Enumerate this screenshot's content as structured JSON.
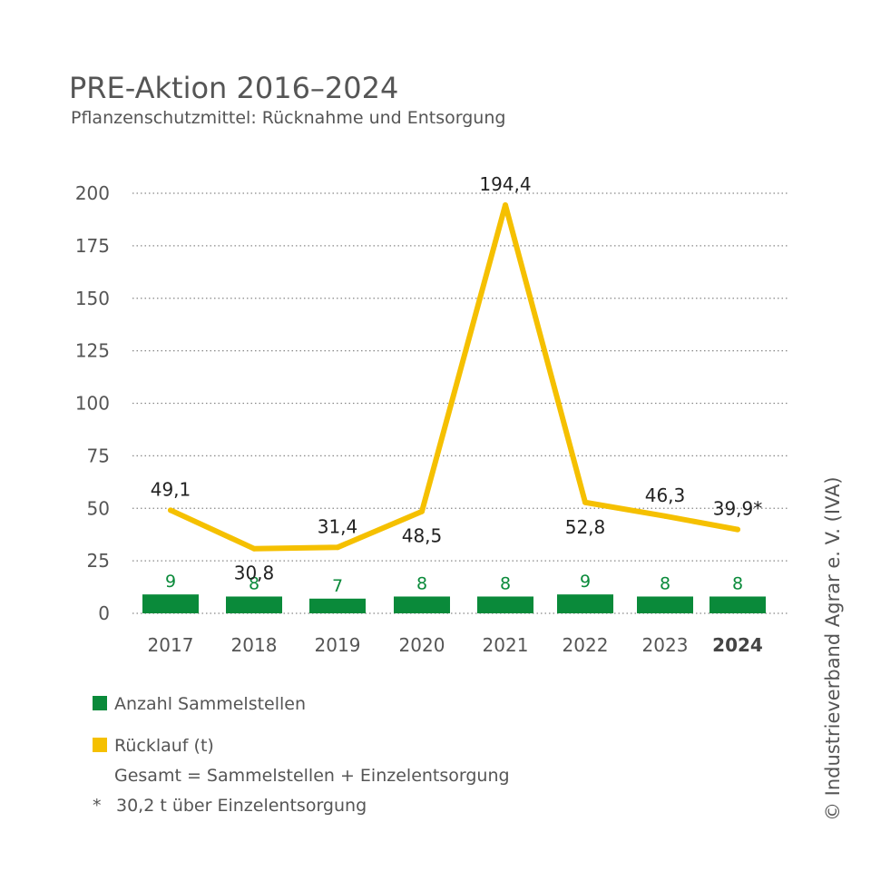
{
  "header": {
    "title": "PRE-Aktion 2016–2024",
    "subtitle": "Pflanzenschutzmittel: Rücknahme und Entsorgung"
  },
  "chart_data": {
    "type": "bar+line",
    "ylim": [
      0,
      200
    ],
    "yticks": [
      0,
      25,
      50,
      75,
      100,
      125,
      150,
      175,
      200
    ],
    "categories": [
      "2017",
      "2018",
      "2019",
      "2020",
      "2021",
      "2022",
      "2023",
      "2024"
    ],
    "highlight_category": "2024",
    "grid": true,
    "series": [
      {
        "name": "Anzahl Sammelstellen",
        "kind": "bar",
        "values": [
          9,
          8,
          7,
          8,
          8,
          9,
          8,
          8
        ],
        "labels": [
          "9",
          "8",
          "7",
          "8",
          "8",
          "9",
          "8",
          "8"
        ],
        "color": "#0a8a3a"
      },
      {
        "name": "Rücklauf (t)",
        "kind": "line",
        "values": [
          49.1,
          30.8,
          31.4,
          48.5,
          194.4,
          52.8,
          46.3,
          39.9
        ],
        "labels": [
          "49,1",
          "30,8",
          "31,4",
          "48,5",
          "194,4",
          "52,8",
          "46,3",
          "39,9*"
        ],
        "label_position": [
          "above",
          "below",
          "above",
          "below",
          "above",
          "below",
          "above",
          "above"
        ],
        "color": "#f5c000"
      }
    ]
  },
  "legend": {
    "bars_label": "Anzahl Sammelstellen",
    "line_label": "Rücklauf (t)",
    "line_sublabel": "Gesamt = Sammelstellen + Einzelentsorgung"
  },
  "footnote": {
    "marker": "*",
    "text": "30,2 t über Einzelentsorgung"
  },
  "copyright": "© Industrieverband Agrar e. V. (IVA)",
  "colors": {
    "bar": "#0a8a3a",
    "line": "#f5c000",
    "text": "#555555",
    "label_dark": "#222222",
    "grid": "#888888"
  }
}
